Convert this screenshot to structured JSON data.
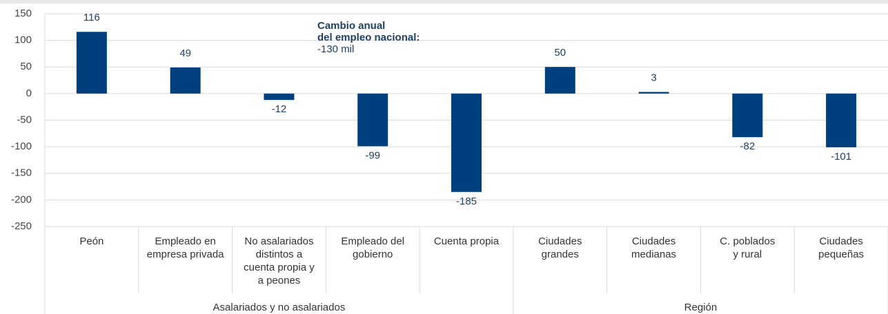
{
  "chart_data": {
    "type": "bar",
    "color": "#003f7d",
    "annotation": {
      "title": "Cambio anual\ndel empleo nacional:",
      "value": "-130 mil"
    },
    "groups": [
      {
        "name": "Asalariados y no asalariados",
        "categories": [
          "Peón",
          "Empleado en\nempresa privada",
          "No asalariados\ndistintos a\ncuenta propia y\na peones",
          "Empleado del\ngobierno",
          "Cuenta propia"
        ],
        "values": [
          116,
          49,
          -12,
          -99,
          -185
        ]
      },
      {
        "name": "Región",
        "categories": [
          "Ciudades\ngrandes",
          "Ciudades\nmedianas",
          "C. poblados\ny rural",
          "Ciudades\npequeñas"
        ],
        "values": [
          50,
          3,
          -82,
          -101
        ]
      }
    ],
    "ylim": [
      -250,
      150
    ],
    "yticks": [
      -250,
      -200,
      -150,
      -100,
      -50,
      0,
      50,
      100,
      150
    ],
    "grid": true
  }
}
